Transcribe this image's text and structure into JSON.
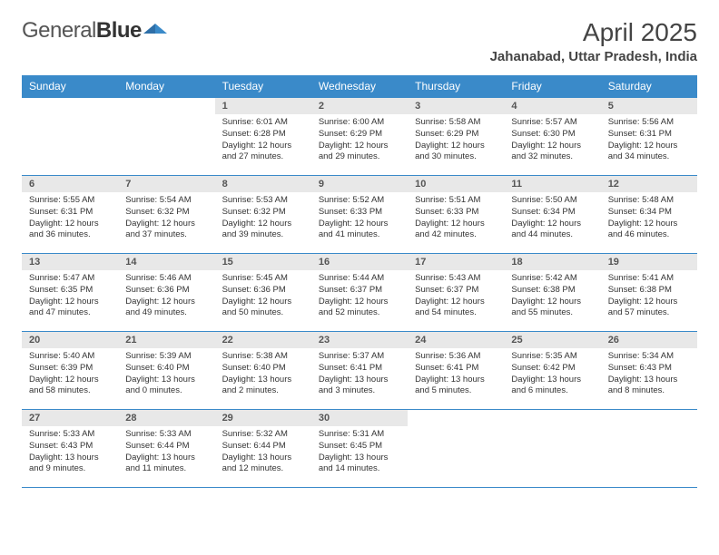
{
  "brand": {
    "text1": "General",
    "text2": "Blue"
  },
  "title": "April 2025",
  "location": "Jahanabad, Uttar Pradesh, India",
  "colors": {
    "header_bg": "#3a8ac9",
    "daynum_bg": "#e8e8e8",
    "rule": "#3a8ac9",
    "text": "#333333"
  },
  "weekdays": [
    "Sunday",
    "Monday",
    "Tuesday",
    "Wednesday",
    "Thursday",
    "Friday",
    "Saturday"
  ],
  "cells": [
    {
      "n": "",
      "sr": "",
      "ss": "",
      "dl": ""
    },
    {
      "n": "",
      "sr": "",
      "ss": "",
      "dl": ""
    },
    {
      "n": "1",
      "sr": "6:01 AM",
      "ss": "6:28 PM",
      "dl": "12 hours and 27 minutes."
    },
    {
      "n": "2",
      "sr": "6:00 AM",
      "ss": "6:29 PM",
      "dl": "12 hours and 29 minutes."
    },
    {
      "n": "3",
      "sr": "5:58 AM",
      "ss": "6:29 PM",
      "dl": "12 hours and 30 minutes."
    },
    {
      "n": "4",
      "sr": "5:57 AM",
      "ss": "6:30 PM",
      "dl": "12 hours and 32 minutes."
    },
    {
      "n": "5",
      "sr": "5:56 AM",
      "ss": "6:31 PM",
      "dl": "12 hours and 34 minutes."
    },
    {
      "n": "6",
      "sr": "5:55 AM",
      "ss": "6:31 PM",
      "dl": "12 hours and 36 minutes."
    },
    {
      "n": "7",
      "sr": "5:54 AM",
      "ss": "6:32 PM",
      "dl": "12 hours and 37 minutes."
    },
    {
      "n": "8",
      "sr": "5:53 AM",
      "ss": "6:32 PM",
      "dl": "12 hours and 39 minutes."
    },
    {
      "n": "9",
      "sr": "5:52 AM",
      "ss": "6:33 PM",
      "dl": "12 hours and 41 minutes."
    },
    {
      "n": "10",
      "sr": "5:51 AM",
      "ss": "6:33 PM",
      "dl": "12 hours and 42 minutes."
    },
    {
      "n": "11",
      "sr": "5:50 AM",
      "ss": "6:34 PM",
      "dl": "12 hours and 44 minutes."
    },
    {
      "n": "12",
      "sr": "5:48 AM",
      "ss": "6:34 PM",
      "dl": "12 hours and 46 minutes."
    },
    {
      "n": "13",
      "sr": "5:47 AM",
      "ss": "6:35 PM",
      "dl": "12 hours and 47 minutes."
    },
    {
      "n": "14",
      "sr": "5:46 AM",
      "ss": "6:36 PM",
      "dl": "12 hours and 49 minutes."
    },
    {
      "n": "15",
      "sr": "5:45 AM",
      "ss": "6:36 PM",
      "dl": "12 hours and 50 minutes."
    },
    {
      "n": "16",
      "sr": "5:44 AM",
      "ss": "6:37 PM",
      "dl": "12 hours and 52 minutes."
    },
    {
      "n": "17",
      "sr": "5:43 AM",
      "ss": "6:37 PM",
      "dl": "12 hours and 54 minutes."
    },
    {
      "n": "18",
      "sr": "5:42 AM",
      "ss": "6:38 PM",
      "dl": "12 hours and 55 minutes."
    },
    {
      "n": "19",
      "sr": "5:41 AM",
      "ss": "6:38 PM",
      "dl": "12 hours and 57 minutes."
    },
    {
      "n": "20",
      "sr": "5:40 AM",
      "ss": "6:39 PM",
      "dl": "12 hours and 58 minutes."
    },
    {
      "n": "21",
      "sr": "5:39 AM",
      "ss": "6:40 PM",
      "dl": "13 hours and 0 minutes."
    },
    {
      "n": "22",
      "sr": "5:38 AM",
      "ss": "6:40 PM",
      "dl": "13 hours and 2 minutes."
    },
    {
      "n": "23",
      "sr": "5:37 AM",
      "ss": "6:41 PM",
      "dl": "13 hours and 3 minutes."
    },
    {
      "n": "24",
      "sr": "5:36 AM",
      "ss": "6:41 PM",
      "dl": "13 hours and 5 minutes."
    },
    {
      "n": "25",
      "sr": "5:35 AM",
      "ss": "6:42 PM",
      "dl": "13 hours and 6 minutes."
    },
    {
      "n": "26",
      "sr": "5:34 AM",
      "ss": "6:43 PM",
      "dl": "13 hours and 8 minutes."
    },
    {
      "n": "27",
      "sr": "5:33 AM",
      "ss": "6:43 PM",
      "dl": "13 hours and 9 minutes."
    },
    {
      "n": "28",
      "sr": "5:33 AM",
      "ss": "6:44 PM",
      "dl": "13 hours and 11 minutes."
    },
    {
      "n": "29",
      "sr": "5:32 AM",
      "ss": "6:44 PM",
      "dl": "13 hours and 12 minutes."
    },
    {
      "n": "30",
      "sr": "5:31 AM",
      "ss": "6:45 PM",
      "dl": "13 hours and 14 minutes."
    },
    {
      "n": "",
      "sr": "",
      "ss": "",
      "dl": ""
    },
    {
      "n": "",
      "sr": "",
      "ss": "",
      "dl": ""
    },
    {
      "n": "",
      "sr": "",
      "ss": "",
      "dl": ""
    }
  ],
  "labels": {
    "sunrise": "Sunrise: ",
    "sunset": "Sunset: ",
    "daylight": "Daylight: "
  }
}
